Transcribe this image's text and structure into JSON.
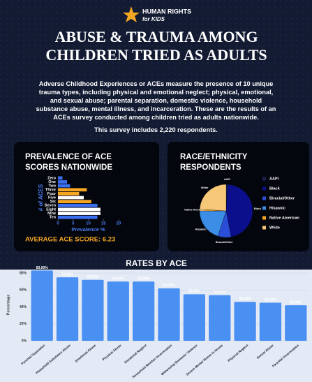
{
  "header": {
    "brand_line1": "HUMAN RIGHTS",
    "brand_line2": "for KIDS",
    "title_line1": "ABUSE & TRAUMA AMONG",
    "title_line2": "CHILDREN TRIED AS ADULTS"
  },
  "intro": {
    "paragraph": "Adverse Childhood Experiences or ACEs measure the presence of 10 unique trauma types, including physical and emotional neglect; physical, emotional, and sexual abuse; parental separation, domestic violence, household substance abuse, mental illness, and incarceration. These are the results of an ACEs survey conducted among children tried as adults nationwide.",
    "respondents": "This survey includes 2,220 respondents."
  },
  "chart_data": [
    {
      "type": "bar",
      "horizontal": true,
      "title": [
        "PREVALENCE OF ACE",
        "SCORES NATIONWIDE"
      ],
      "y_label": "# of ACES",
      "x_label": "Prevalence %",
      "categories": [
        "Zero",
        "One",
        "Two",
        "Three",
        "Four",
        "Five",
        "Six",
        "Seven",
        "Eight",
        "Nine",
        "Ten"
      ],
      "values": [
        1.5,
        3,
        4,
        9.5,
        7,
        8.5,
        11,
        13,
        14,
        14,
        13
      ],
      "colors": [
        "#3a6ff0",
        "#3a6ff0",
        "#3a6ff0",
        "#f5a623",
        "#f5a623",
        "#ffffff",
        "#f5a623",
        "#3a6ff0",
        "#ffffff",
        "#ffffff",
        "#3a6ff0"
      ],
      "xlim": [
        0,
        20
      ],
      "xticks": [
        0,
        5,
        10,
        15,
        20
      ],
      "annotation": "AVERAGE ACE SCORE: 6.23"
    },
    {
      "type": "pie",
      "title": [
        "RACE/ETHNICITY",
        "RESPONDENTS"
      ],
      "categories": [
        "AAPI",
        "Black",
        "Biracial/Other",
        "Hispanic",
        "Native American",
        "White"
      ],
      "values": [
        1,
        46,
        8,
        20,
        1,
        24
      ],
      "colors": [
        "#1c2150",
        "#0b0f8c",
        "#2b4ed6",
        "#3b8de6",
        "#f5a623",
        "#f8c879"
      ]
    },
    {
      "type": "bar",
      "title": "RATES BY ACE",
      "y_label": "Percentage",
      "categories": [
        "Parental Separation",
        "Household Substance Abuse",
        "Emotional Abuse",
        "Physical Abuse",
        "Emotional Neglect",
        "Household Member Incarceration",
        "Witnessing Domestic Violence",
        "Severe Mental Illness in House",
        "Physical Neglect",
        "Sexual Abuse",
        "Parental Incarceration"
      ],
      "values": [
        83,
        75,
        72,
        70,
        70,
        62,
        55,
        54,
        46,
        45,
        42
      ],
      "value_labels": [
        "83.00%",
        "75.00%",
        "72.00%",
        "70.00%",
        "70.00%",
        "62.00%",
        "55.00%",
        "54.00%",
        "46.00%",
        "45.00%",
        "42.00%"
      ],
      "color": "#4a8ff2",
      "ylim": [
        0,
        85
      ],
      "yticks": [
        {
          "value": 0,
          "label": "0%"
        },
        {
          "value": 20,
          "label": "20%"
        },
        {
          "value": 40,
          "label": "40%"
        },
        {
          "value": 60,
          "label": "60%"
        },
        {
          "value": 80,
          "label": "80%"
        }
      ],
      "grid": true
    }
  ]
}
